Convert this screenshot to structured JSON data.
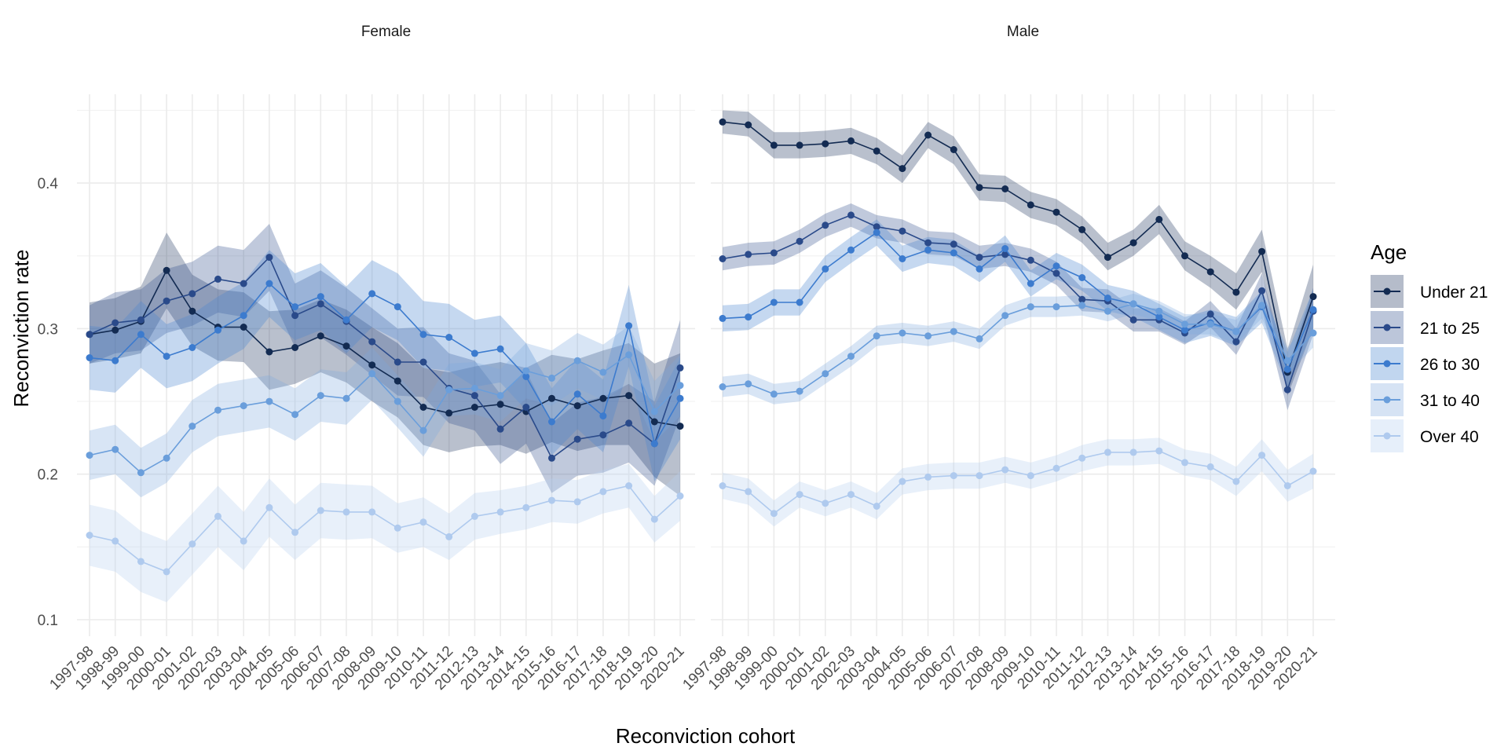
{
  "chart_data": {
    "type": "line",
    "title": "",
    "xlabel": "Reconviction cohort",
    "ylabel": "Reconviction rate",
    "ylim": [
      0.08,
      0.46
    ],
    "yticks": [
      0.1,
      0.2,
      0.3,
      0.4
    ],
    "ytick_labels": [
      "0.1",
      "0.2",
      "0.3",
      "0.4"
    ],
    "grid": true,
    "legend": {
      "title": "Age",
      "position": "right"
    },
    "categories": [
      "1997-98",
      "1998-99",
      "1999-00",
      "2000-01",
      "2001-02",
      "2002-03",
      "2003-04",
      "2004-05",
      "2005-06",
      "2006-07",
      "2007-08",
      "2008-09",
      "2009-10",
      "2010-11",
      "2011-12",
      "2012-13",
      "2013-14",
      "2014-15",
      "2015-16",
      "2016-17",
      "2017-18",
      "2018-19",
      "2019-20",
      "2020-21"
    ],
    "series_styles": [
      {
        "name": "Under 21",
        "line": "#132b52",
        "fill": "#18305a",
        "fill_opacity": 0.3
      },
      {
        "name": "21 to 25",
        "line": "#2a4a8a",
        "fill": "#2f4d8c",
        "fill_opacity": 0.3
      },
      {
        "name": "26 to 30",
        "line": "#3c7bce",
        "fill": "#4a86d0",
        "fill_opacity": 0.32
      },
      {
        "name": "31 to 40",
        "line": "#6a9edb",
        "fill": "#7fa9de",
        "fill_opacity": 0.3
      },
      {
        "name": "Over 40",
        "line": "#afcaee",
        "fill": "#b7d0f0",
        "fill_opacity": 0.32
      }
    ],
    "facets": [
      {
        "name": "Female",
        "series": [
          {
            "name": "Under 21",
            "values": [
              0.296,
              0.299,
              0.305,
              0.34,
              0.312,
              0.301,
              0.301,
              0.284,
              0.287,
              0.295,
              0.288,
              0.275,
              0.264,
              0.246,
              0.242,
              0.246,
              0.248,
              0.243,
              0.252,
              0.247,
              0.252,
              0.254,
              0.236,
              0.233
            ],
            "lower": [
              0.276,
              0.279,
              0.283,
              0.314,
              0.288,
              0.278,
              0.277,
              0.258,
              0.262,
              0.27,
              0.263,
              0.25,
              0.239,
              0.22,
              0.215,
              0.219,
              0.22,
              0.214,
              0.222,
              0.216,
              0.22,
              0.22,
              0.198,
              0.185
            ],
            "upper": [
              0.318,
              0.321,
              0.329,
              0.366,
              0.337,
              0.327,
              0.325,
              0.312,
              0.313,
              0.32,
              0.313,
              0.301,
              0.29,
              0.273,
              0.27,
              0.274,
              0.277,
              0.273,
              0.282,
              0.279,
              0.285,
              0.29,
              0.276,
              0.283
            ]
          },
          {
            "name": "21 to 25",
            "values": [
              0.296,
              0.304,
              0.306,
              0.319,
              0.324,
              0.334,
              0.331,
              0.349,
              0.309,
              0.317,
              0.305,
              0.291,
              0.277,
              0.277,
              0.259,
              0.254,
              0.231,
              0.246,
              0.211,
              0.224,
              0.227,
              0.235,
              0.221,
              0.273
            ],
            "lower": [
              0.276,
              0.283,
              0.285,
              0.297,
              0.302,
              0.311,
              0.308,
              0.326,
              0.287,
              0.294,
              0.282,
              0.268,
              0.254,
              0.253,
              0.235,
              0.23,
              0.207,
              0.221,
              0.187,
              0.199,
              0.201,
              0.208,
              0.192,
              0.24
            ],
            "upper": [
              0.316,
              0.325,
              0.327,
              0.341,
              0.346,
              0.357,
              0.354,
              0.372,
              0.331,
              0.34,
              0.328,
              0.314,
              0.3,
              0.301,
              0.283,
              0.278,
              0.255,
              0.271,
              0.235,
              0.249,
              0.253,
              0.262,
              0.25,
              0.306
            ]
          },
          {
            "name": "26 to 30",
            "values": [
              0.28,
              0.278,
              0.296,
              0.281,
              0.287,
              0.299,
              0.309,
              0.331,
              0.315,
              0.322,
              0.306,
              0.324,
              0.315,
              0.296,
              0.294,
              0.283,
              0.286,
              0.267,
              0.236,
              0.255,
              0.24,
              0.302,
              0.221,
              0.252
            ],
            "lower": [
              0.258,
              0.256,
              0.273,
              0.259,
              0.264,
              0.276,
              0.286,
              0.308,
              0.292,
              0.299,
              0.283,
              0.301,
              0.292,
              0.273,
              0.271,
              0.26,
              0.263,
              0.244,
              0.213,
              0.231,
              0.215,
              0.274,
              0.195,
              0.224
            ],
            "upper": [
              0.302,
              0.3,
              0.319,
              0.303,
              0.31,
              0.322,
              0.332,
              0.354,
              0.338,
              0.345,
              0.329,
              0.347,
              0.338,
              0.319,
              0.317,
              0.306,
              0.309,
              0.29,
              0.259,
              0.279,
              0.265,
              0.33,
              0.247,
              0.28
            ]
          },
          {
            "name": "31 to 40",
            "values": [
              0.213,
              0.217,
              0.201,
              0.211,
              0.233,
              0.244,
              0.247,
              0.25,
              0.241,
              0.254,
              0.252,
              0.269,
              0.25,
              0.23,
              0.258,
              0.259,
              0.254,
              0.271,
              0.266,
              0.278,
              0.27,
              0.282,
              0.243,
              0.261
            ],
            "lower": [
              0.196,
              0.2,
              0.184,
              0.194,
              0.215,
              0.226,
              0.229,
              0.232,
              0.223,
              0.236,
              0.234,
              0.251,
              0.232,
              0.212,
              0.24,
              0.241,
              0.236,
              0.252,
              0.247,
              0.259,
              0.251,
              0.262,
              0.222,
              0.24
            ],
            "upper": [
              0.23,
              0.234,
              0.218,
              0.228,
              0.251,
              0.262,
              0.265,
              0.268,
              0.259,
              0.272,
              0.27,
              0.287,
              0.268,
              0.248,
              0.276,
              0.277,
              0.272,
              0.29,
              0.285,
              0.297,
              0.289,
              0.302,
              0.264,
              0.282
            ]
          },
          {
            "name": "Over 40",
            "values": [
              0.158,
              0.154,
              0.14,
              0.133,
              0.152,
              0.171,
              0.154,
              0.177,
              0.16,
              0.175,
              0.174,
              0.174,
              0.163,
              0.167,
              0.157,
              0.171,
              0.174,
              0.177,
              0.182,
              0.181,
              0.188,
              0.192,
              0.169,
              0.185
            ],
            "lower": [
              0.137,
              0.133,
              0.119,
              0.112,
              0.131,
              0.15,
              0.134,
              0.157,
              0.141,
              0.156,
              0.155,
              0.156,
              0.146,
              0.15,
              0.141,
              0.155,
              0.159,
              0.162,
              0.167,
              0.166,
              0.173,
              0.177,
              0.153,
              0.168
            ],
            "upper": [
              0.179,
              0.175,
              0.161,
              0.154,
              0.173,
              0.192,
              0.174,
              0.197,
              0.179,
              0.194,
              0.193,
              0.192,
              0.18,
              0.184,
              0.173,
              0.187,
              0.189,
              0.192,
              0.197,
              0.196,
              0.203,
              0.207,
              0.185,
              0.202
            ]
          }
        ]
      },
      {
        "name": "Male",
        "series": [
          {
            "name": "Under 21",
            "values": [
              0.442,
              0.44,
              0.426,
              0.426,
              0.427,
              0.429,
              0.422,
              0.41,
              0.433,
              0.423,
              0.397,
              0.396,
              0.385,
              0.38,
              0.368,
              0.349,
              0.359,
              0.375,
              0.35,
              0.339,
              0.325,
              0.353,
              0.27,
              0.322
            ],
            "lower": [
              0.434,
              0.432,
              0.417,
              0.417,
              0.418,
              0.42,
              0.413,
              0.4,
              0.424,
              0.413,
              0.388,
              0.387,
              0.376,
              0.371,
              0.359,
              0.34,
              0.35,
              0.365,
              0.34,
              0.328,
              0.313,
              0.339,
              0.254,
              0.3
            ],
            "upper": [
              0.45,
              0.449,
              0.435,
              0.435,
              0.436,
              0.438,
              0.431,
              0.419,
              0.442,
              0.432,
              0.406,
              0.405,
              0.394,
              0.389,
              0.377,
              0.359,
              0.368,
              0.385,
              0.36,
              0.35,
              0.338,
              0.368,
              0.286,
              0.344
            ]
          },
          {
            "name": "21 to 25",
            "values": [
              0.348,
              0.351,
              0.352,
              0.36,
              0.371,
              0.378,
              0.37,
              0.367,
              0.359,
              0.358,
              0.349,
              0.351,
              0.347,
              0.338,
              0.32,
              0.319,
              0.306,
              0.306,
              0.297,
              0.31,
              0.291,
              0.326,
              0.258,
              0.312
            ],
            "lower": [
              0.34,
              0.343,
              0.344,
              0.352,
              0.363,
              0.37,
              0.362,
              0.359,
              0.351,
              0.35,
              0.341,
              0.343,
              0.339,
              0.33,
              0.312,
              0.311,
              0.298,
              0.298,
              0.289,
              0.301,
              0.282,
              0.314,
              0.244,
              0.296
            ],
            "upper": [
              0.356,
              0.359,
              0.36,
              0.368,
              0.379,
              0.386,
              0.378,
              0.375,
              0.367,
              0.366,
              0.357,
              0.359,
              0.355,
              0.346,
              0.328,
              0.327,
              0.314,
              0.314,
              0.305,
              0.319,
              0.3,
              0.338,
              0.272,
              0.328
            ]
          },
          {
            "name": "26 to 30",
            "values": [
              0.307,
              0.308,
              0.318,
              0.318,
              0.341,
              0.354,
              0.366,
              0.348,
              0.354,
              0.352,
              0.341,
              0.355,
              0.331,
              0.343,
              0.335,
              0.321,
              0.317,
              0.308,
              0.299,
              0.304,
              0.298,
              0.315,
              0.272,
              0.313
            ],
            "lower": [
              0.298,
              0.299,
              0.309,
              0.309,
              0.332,
              0.345,
              0.357,
              0.339,
              0.345,
              0.343,
              0.332,
              0.346,
              0.322,
              0.334,
              0.326,
              0.312,
              0.308,
              0.299,
              0.29,
              0.295,
              0.288,
              0.304,
              0.26,
              0.299
            ],
            "upper": [
              0.316,
              0.317,
              0.327,
              0.327,
              0.35,
              0.363,
              0.375,
              0.357,
              0.363,
              0.361,
              0.35,
              0.364,
              0.34,
              0.352,
              0.344,
              0.33,
              0.326,
              0.317,
              0.308,
              0.313,
              0.308,
              0.326,
              0.284,
              0.327
            ]
          },
          {
            "name": "31 to 40",
            "values": [
              0.26,
              0.262,
              0.255,
              0.257,
              0.269,
              0.281,
              0.295,
              0.297,
              0.295,
              0.298,
              0.293,
              0.309,
              0.315,
              0.315,
              0.316,
              0.312,
              0.317,
              0.312,
              0.303,
              0.303,
              0.298,
              0.316,
              0.278,
              0.297
            ],
            "lower": [
              0.253,
              0.255,
              0.248,
              0.25,
              0.262,
              0.274,
              0.288,
              0.29,
              0.288,
              0.291,
              0.286,
              0.302,
              0.308,
              0.308,
              0.309,
              0.305,
              0.31,
              0.305,
              0.296,
              0.296,
              0.29,
              0.307,
              0.269,
              0.287
            ],
            "upper": [
              0.267,
              0.269,
              0.262,
              0.264,
              0.276,
              0.288,
              0.302,
              0.304,
              0.302,
              0.305,
              0.3,
              0.316,
              0.322,
              0.322,
              0.323,
              0.319,
              0.324,
              0.319,
              0.31,
              0.31,
              0.306,
              0.325,
              0.287,
              0.307
            ]
          },
          {
            "name": "Over 40",
            "values": [
              0.192,
              0.188,
              0.173,
              0.186,
              0.18,
              0.186,
              0.178,
              0.195,
              0.198,
              0.199,
              0.199,
              0.203,
              0.199,
              0.204,
              0.211,
              0.215,
              0.215,
              0.216,
              0.208,
              0.205,
              0.195,
              0.213,
              0.192,
              0.202
            ],
            "lower": [
              0.183,
              0.179,
              0.164,
              0.177,
              0.171,
              0.177,
              0.169,
              0.186,
              0.189,
              0.19,
              0.19,
              0.194,
              0.19,
              0.195,
              0.202,
              0.206,
              0.206,
              0.207,
              0.199,
              0.196,
              0.185,
              0.202,
              0.181,
              0.19
            ],
            "upper": [
              0.201,
              0.197,
              0.182,
              0.195,
              0.189,
              0.195,
              0.187,
              0.204,
              0.207,
              0.208,
              0.208,
              0.212,
              0.208,
              0.213,
              0.22,
              0.224,
              0.224,
              0.225,
              0.217,
              0.214,
              0.205,
              0.224,
              0.203,
              0.214
            ]
          }
        ]
      }
    ]
  }
}
